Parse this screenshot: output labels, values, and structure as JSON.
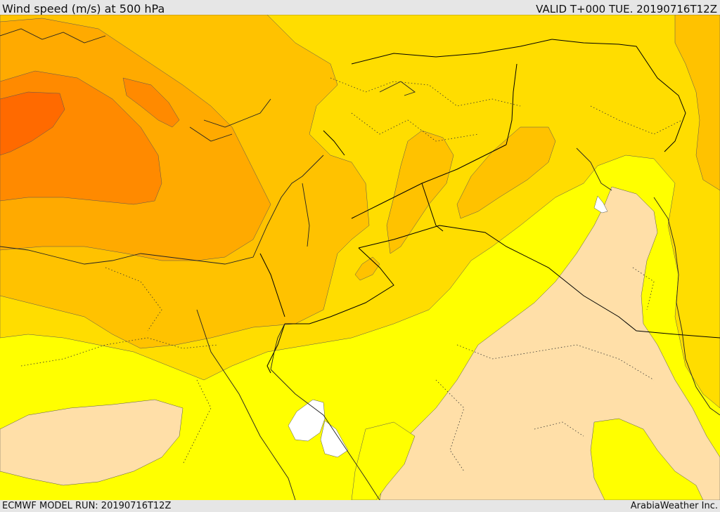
{
  "header": {
    "title": "Wind speed (m/s) at 500 hPa",
    "valid": "VALID T+000 TUE. 20190716T12Z"
  },
  "footer": {
    "model_run": "ECMWF MODEL RUN: 20190716T12Z",
    "credit": "ArabiaWeather Inc."
  },
  "colors": {
    "band_lightest": "#ffdfa8",
    "band_yellow": "#ffff00",
    "band_gold": "#ffdd00",
    "band_amber": "#ffc200",
    "band_orange_light": "#ffaa00",
    "band_orange": "#ff8a00",
    "band_orange_dark": "#ff6a00",
    "missing": "#ffffff",
    "border_line": "#000000"
  }
}
